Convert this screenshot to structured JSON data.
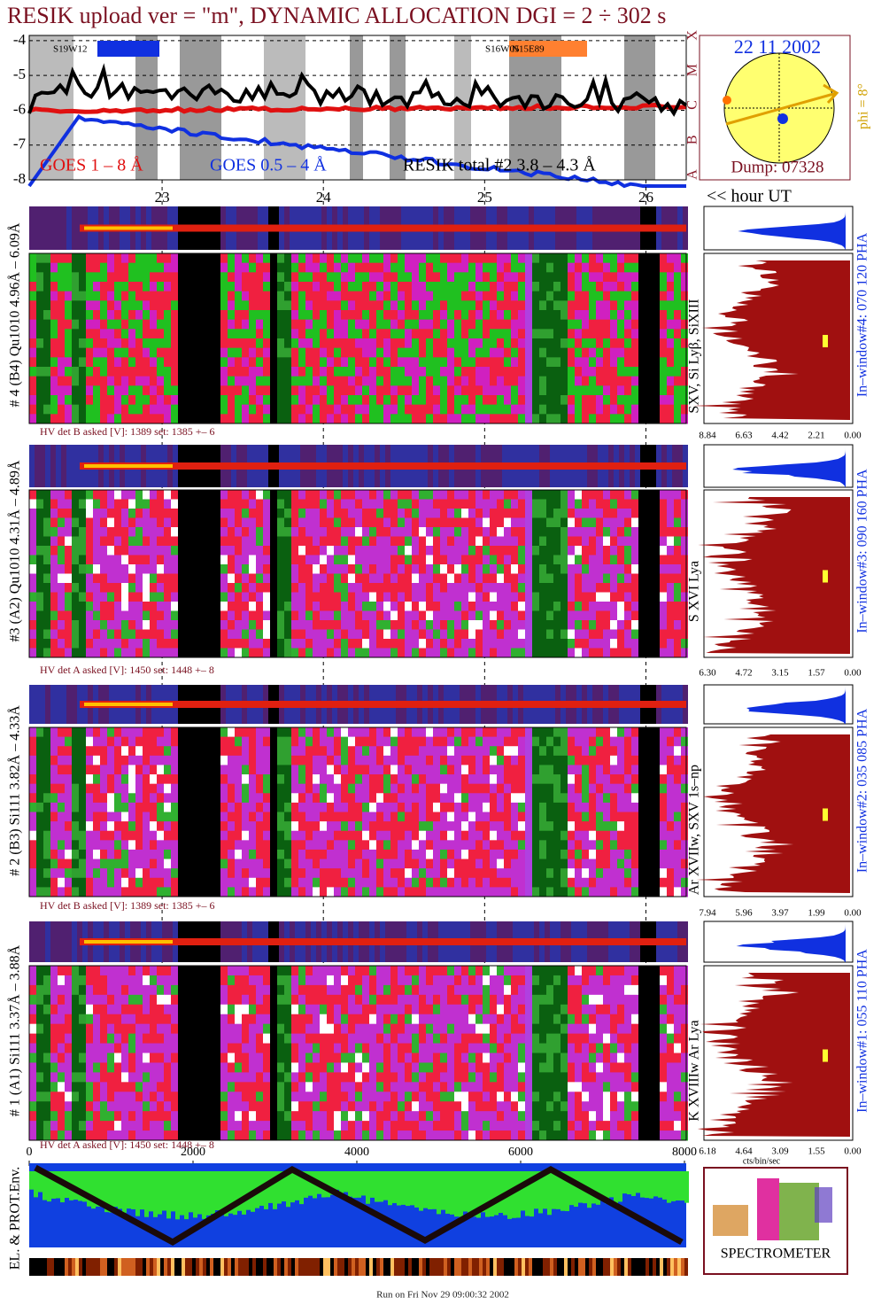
{
  "title": "RESIK upload ver = \"m\", DYNAMIC ALLOCATION  DGI =   2 ÷ 302 s",
  "goes": {
    "yticks": [
      -4,
      -5,
      -6,
      -7,
      -8
    ],
    "ylim": [
      -8.0,
      -3.85
    ],
    "classes": [
      "A",
      "B",
      "C",
      "M",
      "X"
    ],
    "legend": [
      "GOES 1 – 8 Å",
      "GOES 0.5 – 4 Å",
      "RESIK total #2  3.8 – 4.3 Å"
    ],
    "regions": [
      "S19W12",
      "S16W05",
      "N15E89"
    ]
  },
  "time_axis": {
    "ticks": [
      23,
      24,
      25,
      26
    ],
    "xlim": [
      22.176,
      26.25
    ],
    "label": "<< hour UT"
  },
  "orbit": {
    "date": "22 11 2002",
    "phi": "phi =  8°",
    "dump": "Dump: 07328"
  },
  "panels": [
    {
      "label": "# 4 (B4) Qu1010 4.96Å – 6.09Å",
      "lines": "SXV, Si Lyβ, SiXIII",
      "window": "In–window#4:  070 120 PHA",
      "hv": "HV det B asked [V]:  1389 set:  1385 +–    6",
      "ticks": [
        "8.84",
        "6.63",
        "4.42",
        "2.21",
        "0.00"
      ]
    },
    {
      "label": "#3 (A2) Qu1010  4.31Å – 4.89Å",
      "lines": "S XVI Lya",
      "window": "In–window#3:  090 160 PHA",
      "hv": "HV det A asked [V]:  1450 set:  1448 +–    8",
      "ticks": [
        "6.30",
        "4.72",
        "3.15",
        "1.57",
        "0.00"
      ]
    },
    {
      "label": "# 2 (B3) Si111  3.82Å – 4.33Å",
      "lines": "Ar XVIIw,  SXV 1s–np",
      "window": "In–window#2:  035 085 PHA",
      "hv": "HV det B asked [V]:  1389 set:  1385 +–    6",
      "ticks": [
        "7.94",
        "5.96",
        "3.97",
        "1.99",
        "0.00"
      ]
    },
    {
      "label": "# 1 (A1) Si111  3.37Å – 3.88Å",
      "lines": "K XVIIIw  Ar Lya",
      "window": "In–window#1:  055 110 PHA",
      "hv": "HV det A asked [V]:  1450 set:  1448 +–    8",
      "ticks": [
        "6.18",
        "4.64",
        "3.09",
        "1.55",
        "0.00"
      ]
    }
  ],
  "hist_unit": "cts/bin/sec",
  "env": {
    "label": "EL. & PROT.Env.",
    "xticks": [
      0,
      2000,
      4000,
      6000,
      8000
    ],
    "xlim": [
      0,
      8000
    ]
  },
  "logo": "SPECTROMETER",
  "footer": "Run on Fri Nov 29 09:00:32 2002"
}
